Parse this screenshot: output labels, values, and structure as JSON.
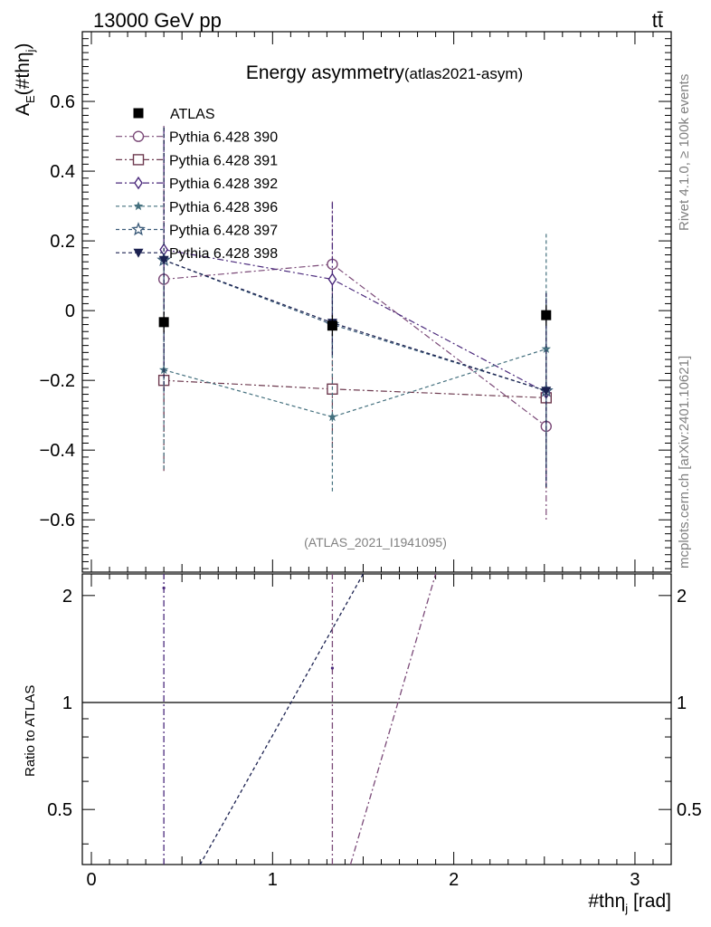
{
  "header": {
    "energy_label": "13000 GeV pp",
    "process_label": "tt̄"
  },
  "side_labels": {
    "rivet": "Rivet 4.1.0, ≥ 100k events",
    "mcplots": "mcplots.cern.ch [arXiv:2401.10621]"
  },
  "colors": {
    "data": "#000000",
    "p390": "#7b4a78",
    "p391": "#6e3b50",
    "p392": "#4b2a7c",
    "p396": "#44707e",
    "p397": "#3a5a78",
    "p398": "#1b2150"
  },
  "chart_data": {
    "type": "scatter",
    "title": "Energy asymmetry",
    "title_suffix": "(atlas2021-asym)",
    "analysis_id": "(ATLAS_2021_I1941095)",
    "ylabel": "A_E(#thη_j)",
    "ylabel_main": "A",
    "ylabel_sub": "E",
    "ylabel_rest": "(#thη",
    "ylabel_sub2": "j",
    "ylabel_close": ")",
    "xlabel": "#thη_j [rad]",
    "xlabel_main": "#thη",
    "xlabel_sub": "j",
    "xlabel_unit": " [rad]",
    "ratio_ylabel": "Ratio to ATLAS",
    "xlim": [
      -0.05,
      3.2
    ],
    "ylim": [
      -0.75,
      0.8
    ],
    "ratio_ylim": [
      0.35,
      2.3
    ],
    "x_ticks": [
      "0",
      "1",
      "2",
      "3"
    ],
    "y_ticks": [
      "0.6",
      "0.4",
      "0.2",
      "0",
      "−0.2",
      "−0.4",
      "−0.6"
    ],
    "ratio_ticks": [
      "0.5",
      "1",
      "2"
    ],
    "x": [
      0.4,
      1.33,
      2.51
    ],
    "series": [
      {
        "name": "ATLAS",
        "color_key": "data",
        "marker": "square-filled",
        "dash": "",
        "values": [
          -0.033,
          -0.043,
          -0.013
        ],
        "err": [
          0.03,
          0.03,
          0.03
        ]
      },
      {
        "name": "Pythia 6.428 390",
        "color_key": "p390",
        "marker": "circle-open",
        "dash": "7,3,2,3",
        "values": [
          0.09,
          0.133,
          -0.332
        ],
        "err": [
          0.44,
          0.18,
          0.27
        ]
      },
      {
        "name": "Pythia 6.428 391",
        "color_key": "p391",
        "marker": "square-open",
        "dash": "7,3,2,3",
        "values": [
          -0.2,
          -0.225,
          -0.25
        ],
        "err": [
          0.26,
          0.2,
          0.26
        ]
      },
      {
        "name": "Pythia 6.428 392",
        "color_key": "p392",
        "marker": "diamond-open",
        "dash": "7,3,2,3",
        "values": [
          0.175,
          0.09,
          -0.235
        ],
        "err": [
          0.35,
          0.22,
          0.27
        ]
      },
      {
        "name": "Pythia 6.428 396",
        "color_key": "p396",
        "marker": "star-filled",
        "dash": "4,3",
        "values": [
          -0.17,
          -0.305,
          -0.11
        ],
        "err": [
          0.29,
          0.215,
          0.33
        ]
      },
      {
        "name": "Pythia 6.428 397",
        "color_key": "p397",
        "marker": "star-open",
        "dash": "4,3",
        "values": [
          0.145,
          -0.04,
          -0.23
        ],
        "err": [
          0.38,
          0.08,
          0.28
        ]
      },
      {
        "name": "Pythia 6.428 398",
        "color_key": "p398",
        "marker": "triangle-down-filled",
        "dash": "4,3",
        "values": [
          0.145,
          -0.035,
          -0.23
        ],
        "err": [
          0.38,
          0.1,
          0.28
        ]
      }
    ],
    "ratio_lines": [
      {
        "color_key": "p398",
        "dash": "4,3",
        "points": [
          [
            0.6,
            0.35
          ],
          [
            1.5,
            2.3
          ]
        ]
      },
      {
        "color_key": "p390",
        "dash": "7,3,2,3",
        "points": [
          [
            1.43,
            0.35
          ],
          [
            1.9,
            2.3
          ]
        ]
      },
      {
        "color_key": "p392",
        "dash": "7,3,2,3",
        "points": [
          [
            0.4,
            0.35
          ],
          [
            0.4,
            2.3
          ]
        ]
      },
      {
        "color_key": "p390",
        "dash": "7,3,2,3",
        "points": [
          [
            1.33,
            0.35
          ],
          [
            1.33,
            2.3
          ]
        ]
      }
    ]
  }
}
